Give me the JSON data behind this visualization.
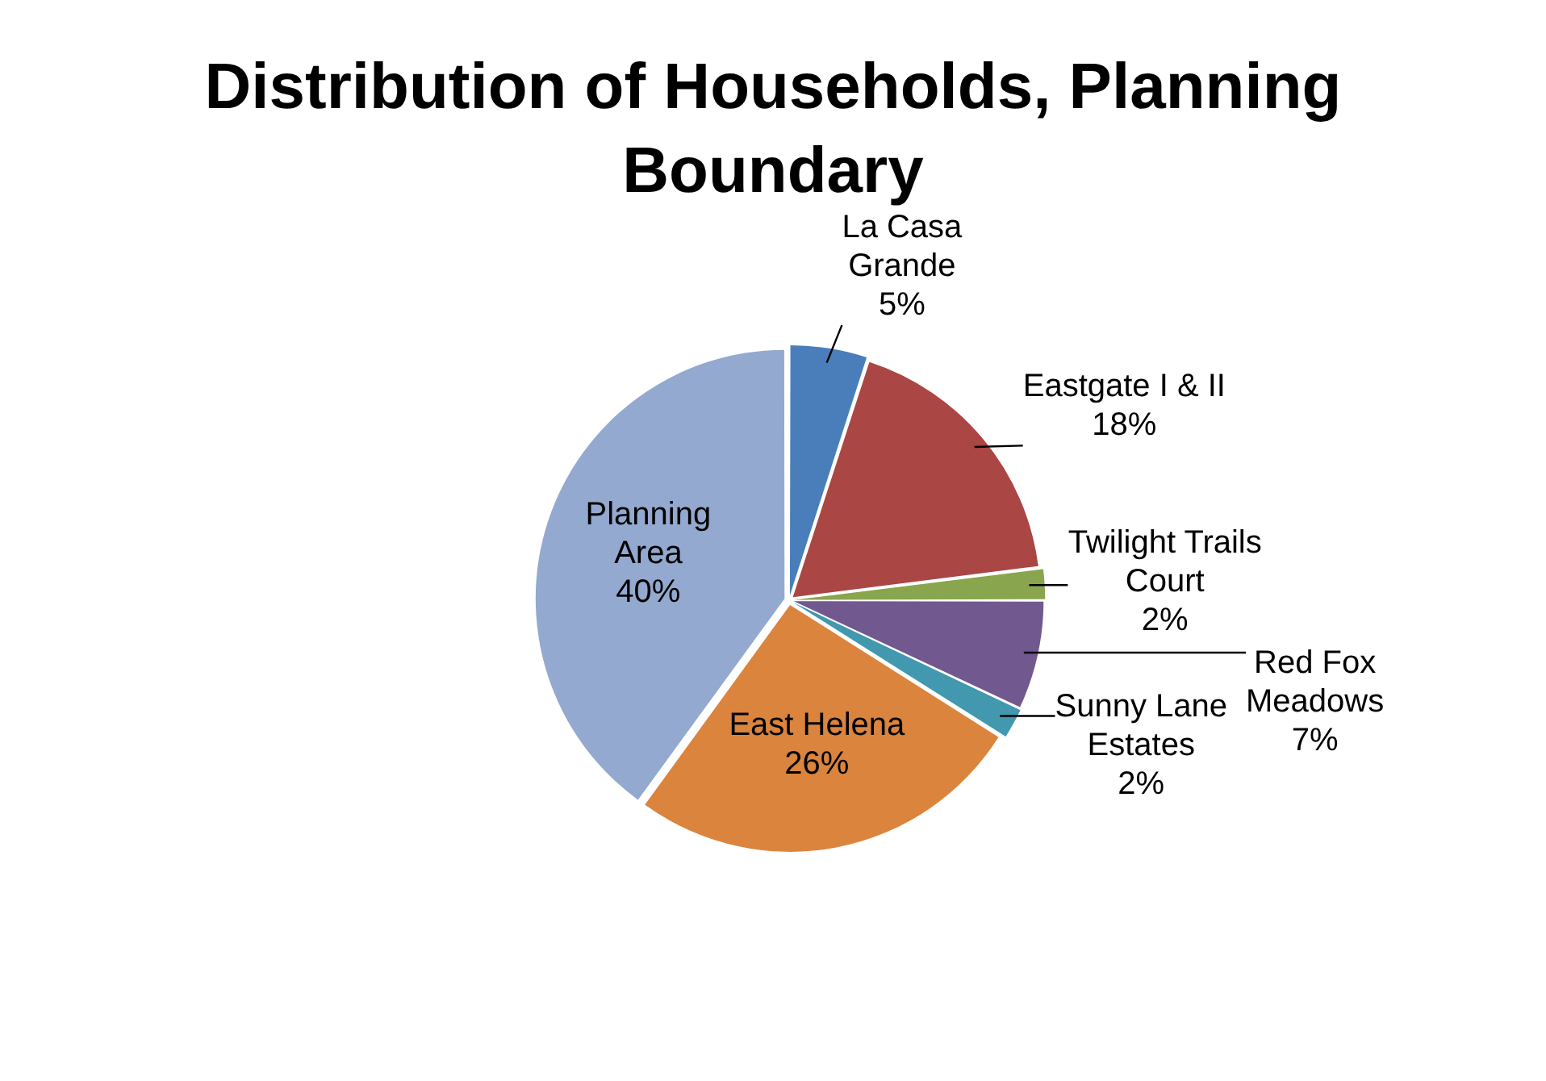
{
  "chart_data": {
    "type": "pie",
    "title": "Distribution of Households, Planning Boundary",
    "categories": [
      "La Casa Grande",
      "Eastgate I & II",
      "Twilight Trails Court",
      "Red Fox Meadows",
      "Sunny Lane Estates",
      "East Helena",
      "Planning Area"
    ],
    "values": [
      5,
      18,
      2,
      7,
      2,
      26,
      40
    ],
    "value_labels": [
      "5%",
      "18%",
      "2%",
      "7%",
      "2%",
      "26%",
      "40%"
    ],
    "colors": [
      "#4a7ebb",
      "#aa4643",
      "#89a54e",
      "#71588f",
      "#4198af",
      "#db843d",
      "#93a9cf"
    ],
    "legend": false
  }
}
